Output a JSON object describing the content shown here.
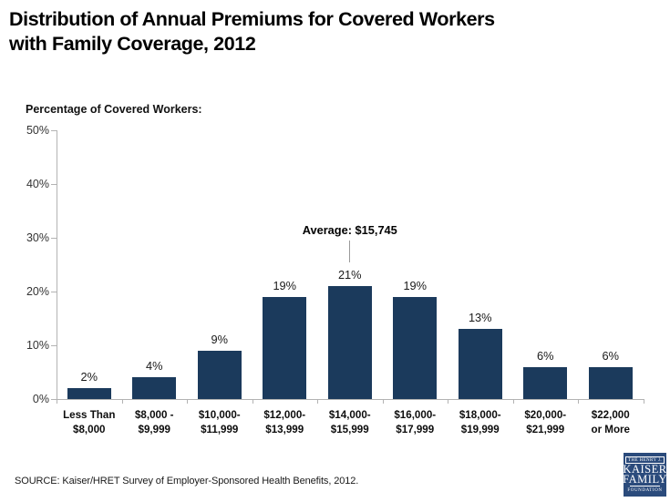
{
  "page": {
    "title": "Distribution of Annual Premiums for Covered Workers\nwith Family Coverage, 2012",
    "source": "SOURCE:  Kaiser/HRET Survey of Employer-Sponsored Health Benefits, 2012."
  },
  "chart_data": {
    "type": "bar",
    "title": "Distribution of Annual Premiums for Covered Workers with Family Coverage, 2012",
    "axis_title": "Percentage of Covered Workers:",
    "categories": [
      [
        "Less Than",
        "$8,000"
      ],
      [
        "$8,000 -",
        "$9,999"
      ],
      [
        "$10,000-",
        "$11,999"
      ],
      [
        "$12,000-",
        "$13,999"
      ],
      [
        "$14,000-",
        "$15,999"
      ],
      [
        "$16,000-",
        "$17,999"
      ],
      [
        "$18,000-",
        "$19,999"
      ],
      [
        "$20,000-",
        "$21,999"
      ],
      [
        "$22,000",
        "or More"
      ]
    ],
    "values": [
      2,
      4,
      9,
      19,
      21,
      19,
      13,
      6,
      6
    ],
    "value_labels": [
      "2%",
      "4%",
      "9%",
      "19%",
      "21%",
      "19%",
      "13%",
      "6%",
      "6%"
    ],
    "xlabel": "",
    "ylabel": "Percentage of Covered Workers:",
    "ylim": [
      0,
      50
    ],
    "y_tick_labels": [
      "0%",
      "10%",
      "20%",
      "30%",
      "40%",
      "50%"
    ],
    "grid": false,
    "legend": false,
    "annotation": {
      "text": "Average: $15,745",
      "target_category_index": 4
    },
    "colors": {
      "bar": "#1b3a5c",
      "axis": "#b3b3b3",
      "annotation_line": "#9a9a9a",
      "title": "#000000",
      "label": "#1a1a1a"
    }
  },
  "logo": {
    "line1": "THE HENRY J.",
    "line2": "KAISER",
    "line3": "FAMILY",
    "line4": "FOUNDATION",
    "bg_color": "#2b4b7c"
  }
}
